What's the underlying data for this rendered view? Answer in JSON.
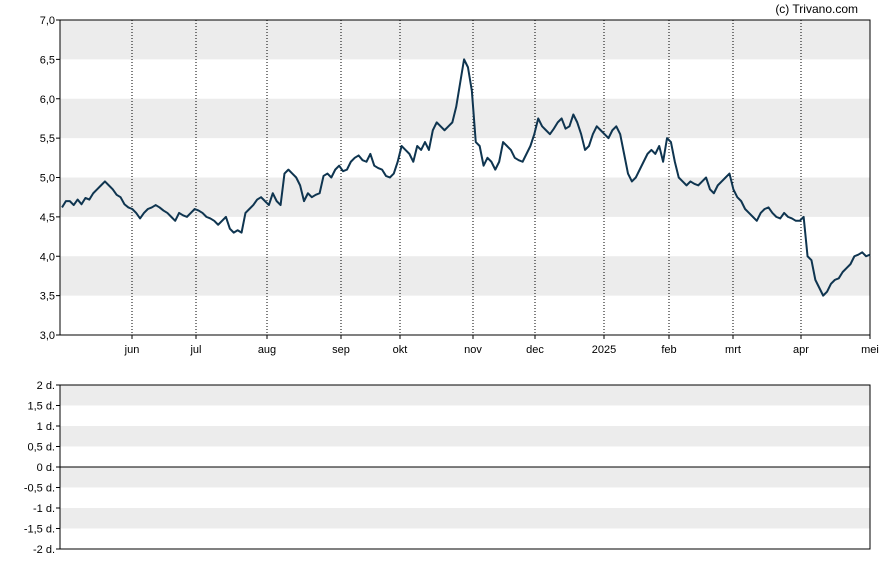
{
  "copyright": "(c) Trivano.com",
  "colors": {
    "line": "#0f3550",
    "band": "#ececec",
    "grid": "#000000",
    "background": "#ffffff"
  },
  "chart_data": [
    {
      "type": "line",
      "name": "price-chart",
      "ylim": [
        3.0,
        7.0
      ],
      "y_ticks": [
        {
          "value": 3.0,
          "label": "3,0"
        },
        {
          "value": 3.5,
          "label": "3,5"
        },
        {
          "value": 4.0,
          "label": "4,0"
        },
        {
          "value": 4.5,
          "label": "4,5"
        },
        {
          "value": 5.0,
          "label": "5,0"
        },
        {
          "value": 5.5,
          "label": "5,5"
        },
        {
          "value": 6.0,
          "label": "6,0"
        },
        {
          "value": 6.5,
          "label": "6,5"
        },
        {
          "value": 7.0,
          "label": "7,0"
        }
      ],
      "x_ticks": [
        "jun",
        "jul",
        "aug",
        "sep",
        "okt",
        "nov",
        "dec",
        "2025",
        "feb",
        "mrt",
        "apr",
        "mei"
      ],
      "grid": "vertical dotted lines at month ticks, alternating horizontal bands",
      "series": [
        {
          "values": [
            4.62,
            4.7,
            4.7,
            4.65,
            4.72,
            4.66,
            4.74,
            4.72,
            4.8,
            4.85,
            4.9,
            4.95,
            4.9,
            4.85,
            4.78,
            4.75,
            4.66,
            4.62,
            4.6,
            4.55,
            4.48,
            4.55,
            4.6,
            4.62,
            4.65,
            4.62,
            4.58,
            4.55,
            4.5,
            4.45,
            4.55,
            4.52,
            4.5,
            4.55,
            4.6,
            4.58,
            4.55,
            4.5,
            4.48,
            4.45,
            4.4,
            4.45,
            4.5,
            4.35,
            4.3,
            4.33,
            4.3,
            4.55,
            4.6,
            4.65,
            4.72,
            4.75,
            4.7,
            4.65,
            4.8,
            4.7,
            4.65,
            5.05,
            5.1,
            5.05,
            5.0,
            4.9,
            4.7,
            4.8,
            4.75,
            4.78,
            4.8,
            5.02,
            5.05,
            5.0,
            5.1,
            5.15,
            5.08,
            5.1,
            5.2,
            5.25,
            5.28,
            5.22,
            5.2,
            5.3,
            5.15,
            5.12,
            5.1,
            5.02,
            5.0,
            5.05,
            5.2,
            5.4,
            5.35,
            5.3,
            5.2,
            5.4,
            5.35,
            5.45,
            5.35,
            5.6,
            5.7,
            5.65,
            5.6,
            5.65,
            5.7,
            5.9,
            6.2,
            6.5,
            6.4,
            6.1,
            5.45,
            5.4,
            5.15,
            5.25,
            5.2,
            5.1,
            5.2,
            5.45,
            5.4,
            5.35,
            5.25,
            5.22,
            5.2,
            5.3,
            5.4,
            5.55,
            5.75,
            5.65,
            5.6,
            5.55,
            5.62,
            5.7,
            5.75,
            5.62,
            5.65,
            5.8,
            5.7,
            5.55,
            5.35,
            5.4,
            5.55,
            5.65,
            5.6,
            5.55,
            5.5,
            5.6,
            5.65,
            5.55,
            5.3,
            5.05,
            4.95,
            5.0,
            5.1,
            5.2,
            5.3,
            5.35,
            5.3,
            5.4,
            5.2,
            5.5,
            5.45,
            5.2,
            5.0,
            4.95,
            4.9,
            4.95,
            4.92,
            4.9,
            4.95,
            5.0,
            4.85,
            4.8,
            4.9,
            4.95,
            5.0,
            5.05,
            4.85,
            4.75,
            4.7,
            4.6,
            4.55,
            4.5,
            4.45,
            4.55,
            4.6,
            4.62,
            4.55,
            4.5,
            4.48,
            4.55,
            4.5,
            4.48,
            4.45,
            4.45,
            4.5,
            4.0,
            3.95,
            3.7,
            3.6,
            3.5,
            3.55,
            3.65,
            3.7,
            3.72,
            3.8,
            3.85,
            3.9,
            4.0,
            4.02,
            4.05,
            4.0,
            4.02
          ]
        }
      ]
    },
    {
      "type": "line",
      "name": "dividend-chart",
      "ylim": [
        -2,
        2
      ],
      "y_ticks": [
        {
          "value": 2,
          "label": "2 d."
        },
        {
          "value": 1.5,
          "label": "1,5 d."
        },
        {
          "value": 1,
          "label": "1 d."
        },
        {
          "value": 0.5,
          "label": "0,5 d."
        },
        {
          "value": 0,
          "label": "0 d."
        },
        {
          "value": -0.5,
          "label": "-0,5 d."
        },
        {
          "value": -1,
          "label": "-1 d."
        },
        {
          "value": -1.5,
          "label": "-1,5 d."
        },
        {
          "value": -2,
          "label": "-2 d."
        }
      ],
      "series": []
    }
  ]
}
